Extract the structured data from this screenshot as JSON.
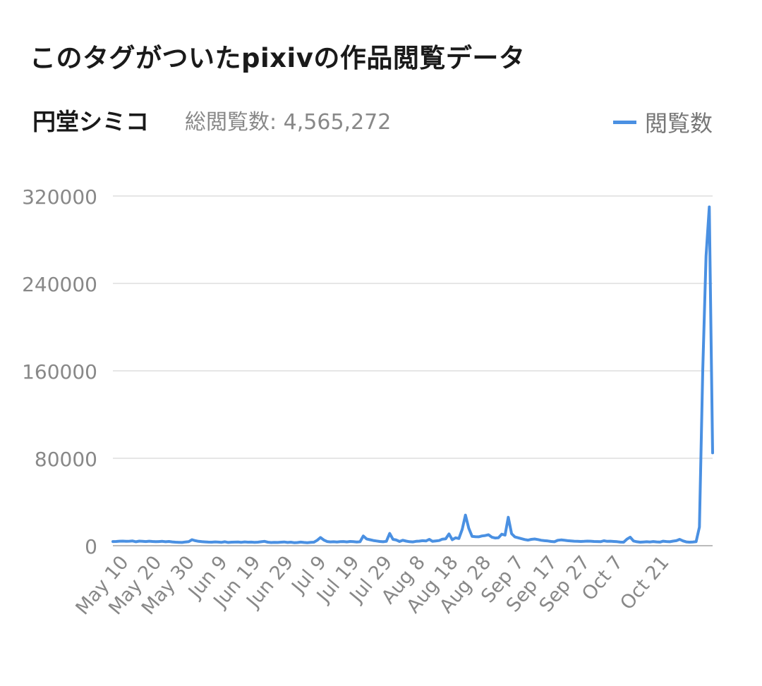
{
  "header": {
    "title": "このタグがついたpixivの作品閲覧データ",
    "tag_name": "円堂シミコ",
    "total_label": "総閲覧数:",
    "total_value": "4,565,272"
  },
  "colors": {
    "line": "#4a90e2",
    "grid": "#e6e6e6",
    "axis_text": "#888888"
  },
  "chart_data": {
    "type": "line",
    "title": "",
    "xlabel": "",
    "ylabel": "",
    "ylim": [
      0,
      320000
    ],
    "y_ticks": [
      "320000",
      "240000",
      "160000",
      "80000",
      "0"
    ],
    "x_tick_labels": [
      "May 10",
      "May 20",
      "May 30",
      "Jun 9",
      "Jun 19",
      "Jun 29",
      "Jul 9",
      "Jul 19",
      "Jul 29",
      "Aug 8",
      "Aug 18",
      "Aug 28",
      "Sep 7",
      "Sep 17",
      "Sep 27",
      "Oct 7",
      "Oct 21"
    ],
    "x_tick_day_index": [
      5,
      15,
      25,
      35,
      45,
      55,
      65,
      75,
      85,
      95,
      105,
      115,
      125,
      135,
      145,
      155,
      169
    ],
    "grid": true,
    "legend": "top-right",
    "series": [
      {
        "name": "閲覧数",
        "x_start": "May 5",
        "values": [
          3800,
          3900,
          4100,
          4200,
          4000,
          4100,
          4300,
          3600,
          4200,
          4000,
          3800,
          4100,
          3900,
          3700,
          3800,
          4000,
          3600,
          3900,
          3500,
          3200,
          3100,
          3000,
          3400,
          3700,
          5500,
          4600,
          4000,
          3700,
          3500,
          3300,
          3200,
          3500,
          3300,
          3100,
          3600,
          3000,
          3200,
          3300,
          3400,
          3100,
          3500,
          3200,
          3300,
          3100,
          3200,
          3600,
          4000,
          3200,
          2900,
          3100,
          3000,
          3200,
          3400,
          3000,
          3200,
          2800,
          2900,
          3300,
          3000,
          2800,
          3100,
          3200,
          5000,
          7500,
          5200,
          3800,
          3500,
          3600,
          3400,
          3700,
          3800,
          3500,
          3900,
          3700,
          3400,
          3600,
          8900,
          6200,
          5500,
          4800,
          4300,
          3900,
          3600,
          4000,
          11200,
          5800,
          5200,
          3900,
          5000,
          4200,
          3700,
          3500,
          4000,
          4200,
          4600,
          4300,
          5800,
          4000,
          4300,
          4700,
          6000,
          6300,
          10800,
          5500,
          7200,
          6600,
          15000,
          28000,
          16000,
          8500,
          8200,
          8100,
          8900,
          9300,
          10000,
          7800,
          7000,
          7200,
          10500,
          9700,
          26000,
          11000,
          8000,
          7200,
          6400,
          5600,
          5100,
          5800,
          6100,
          5600,
          5000,
          4600,
          4300,
          3900,
          3600,
          4900,
          5300,
          5000,
          4600,
          4300,
          4100,
          4000,
          3900,
          4000,
          4200,
          4100,
          3900,
          3800,
          3700,
          4500,
          4000,
          4100,
          3900,
          3700,
          3300,
          3200,
          6000,
          7800,
          4300,
          3600,
          3200,
          3400,
          3600,
          3400,
          3800,
          3500,
          3300,
          4100,
          3800,
          3600,
          4200,
          4600,
          5800,
          4400,
          3500,
          3200,
          3400,
          3700,
          17000,
          160000,
          265000,
          310000,
          85000
        ]
      }
    ]
  }
}
